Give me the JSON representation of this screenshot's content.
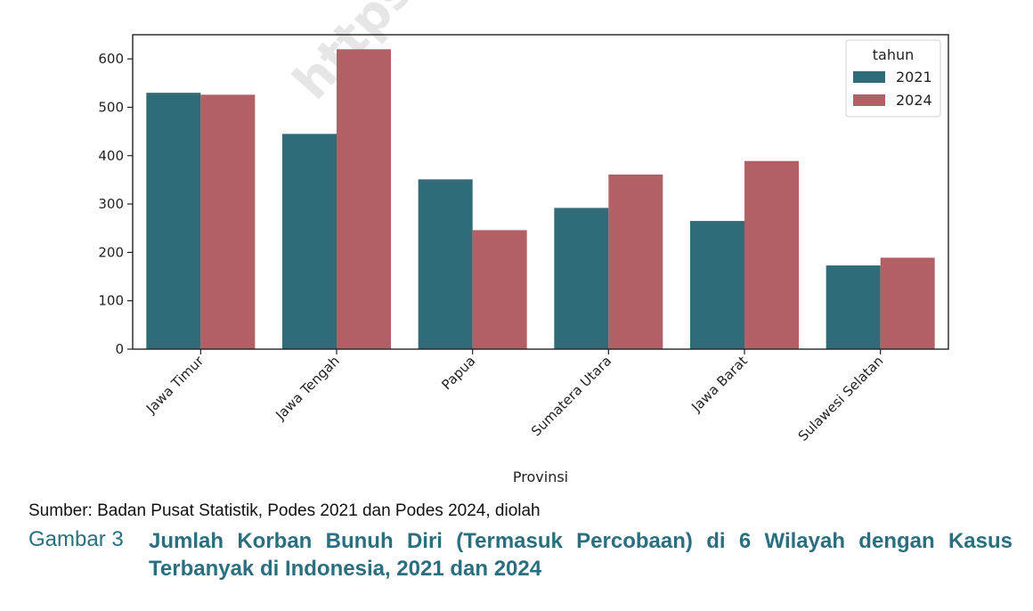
{
  "chart_data": {
    "type": "bar",
    "categories": [
      "Jawa Timur",
      "Jawa Tengah",
      "Papua",
      "Sumatera Utara",
      "Jawa Barat",
      "Sulawesi Selatan"
    ],
    "series": [
      {
        "name": "2021",
        "color": "#306b78",
        "values": [
          530,
          445,
          351,
          292,
          265,
          173
        ]
      },
      {
        "name": "2024",
        "color": "#b35f66",
        "values": [
          526,
          620,
          246,
          361,
          389,
          189
        ]
      }
    ],
    "xlabel": "Provinsi",
    "ylabel": "",
    "ylim": [
      0,
      650
    ],
    "yticks": [
      0,
      100,
      200,
      300,
      400,
      500,
      600
    ],
    "legend_title": "tahun",
    "legend_position": "top-right",
    "grid": false
  },
  "watermark": "https://",
  "source_note": "Sumber: Badan Pusat Statistik, Podes 2021 dan Podes 2024, diolah",
  "caption": {
    "label": "Gambar 3",
    "title": "Jumlah Korban Bunuh Diri (Termasuk Percobaan) di 6 Wilayah dengan Kasus Terbanyak di Indonesia, 2021 dan 2024"
  }
}
